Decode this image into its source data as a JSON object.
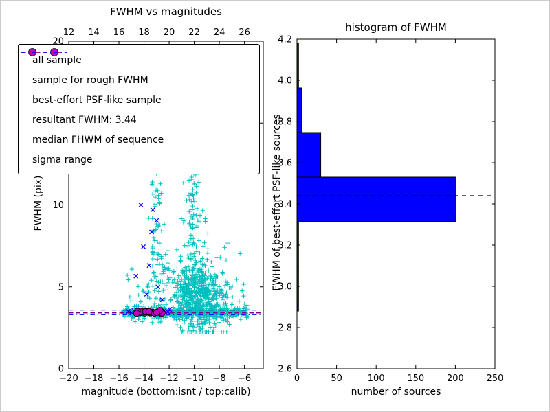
{
  "figure": {
    "background": "#ffffff"
  },
  "chart_data": [
    {
      "type": "scatter",
      "title": "FWHM vs magnitudes",
      "xlabel": "magnitude (bottom:isnt / top:calib)",
      "ylabel": "FWHM (pix)",
      "xlim": [
        -20,
        -4.5
      ],
      "ylim": [
        0,
        20
      ],
      "grid": false,
      "xticks": {
        "values": [
          -20,
          -18,
          -16,
          -14,
          -12,
          -10,
          -8,
          -6
        ],
        "labels": [
          "−20",
          "−18",
          "−16",
          "−14",
          "−12",
          "−10",
          "−8",
          "−6"
        ]
      },
      "top_xticks": {
        "values": [
          12,
          14,
          16,
          18,
          20,
          22,
          24,
          26
        ],
        "labels": [
          "12",
          "14",
          "16",
          "18",
          "20",
          "22",
          "24",
          "26"
        ],
        "offset": 32
      },
      "yticks": {
        "values": [
          0,
          5,
          10,
          15,
          20
        ],
        "labels": [
          "0",
          "5",
          "10",
          "15",
          "20"
        ]
      },
      "colors": {
        "all_sample": "#00bfbf",
        "rough_sample": "#0000ff",
        "psf_sample": "#bf00bf",
        "resultant": "#0000ff",
        "median": "#ff0000",
        "sigma": "#0000ff"
      },
      "clusters": [
        {
          "name": "band-main",
          "marker": "plus",
          "color": "#00bfbf",
          "n": 470,
          "x": {
            "type": "uniform",
            "a": -15.7,
            "b": -8.3
          },
          "y": {
            "type": "gauss",
            "mean": 3.42,
            "sd": 0.13
          }
        },
        {
          "name": "band-right",
          "marker": "plus",
          "color": "#00bfbf",
          "n": 130,
          "x": {
            "type": "uniform",
            "a": -8.3,
            "b": -5.7
          },
          "y": {
            "type": "gauss",
            "mean": 3.45,
            "sd": 0.18
          }
        },
        {
          "name": "main-cloud",
          "marker": "plus",
          "color": "#00bfbf",
          "n": 620,
          "x": {
            "type": "gauss",
            "mean": -9.7,
            "sd": 1.05
          },
          "y": {
            "type": "gauss",
            "mean": 4.4,
            "sd": 1.15
          },
          "clamp_y": [
            2.25,
            13
          ]
        },
        {
          "name": "upper-plume",
          "marker": "plus",
          "color": "#00bfbf",
          "n": 90,
          "x": {
            "type": "gauss",
            "mean": -9.95,
            "sd": 0.4
          },
          "y": {
            "type": "uniform",
            "a": 6,
            "b": 13.3
          }
        },
        {
          "name": "left-streak",
          "marker": "plus",
          "color": "#00bfbf",
          "n": 70,
          "x": {
            "type": "gauss",
            "mean": -13.05,
            "sd": 0.33
          },
          "y": {
            "type": "uniform",
            "a": 3.6,
            "b": 12.9
          }
        },
        {
          "name": "sparse",
          "marker": "plus",
          "color": "#00bfbf",
          "n": 160,
          "x": {
            "type": "uniform",
            "a": -15.6,
            "b": -6.0
          },
          "y": {
            "type": "halfgauss",
            "base": 2.8,
            "sd": 2.0
          }
        }
      ],
      "rough_points": [
        [
          -14.25,
          10.0
        ],
        [
          -13.3,
          9.7
        ],
        [
          -13.0,
          9.05
        ],
        [
          -13.4,
          8.35
        ],
        [
          -14.05,
          7.45
        ],
        [
          -13.6,
          6.3
        ],
        [
          -14.65,
          5.65
        ],
        [
          -12.9,
          5.0
        ],
        [
          -13.8,
          4.55
        ],
        [
          -12.55,
          4.2
        ],
        [
          -15.25,
          3.5
        ],
        [
          -15.0,
          3.42
        ],
        [
          -14.8,
          3.55
        ],
        [
          -14.55,
          3.38
        ],
        [
          -14.3,
          3.6
        ],
        [
          -14.1,
          3.45
        ],
        [
          -13.9,
          3.52
        ],
        [
          -13.65,
          3.4
        ],
        [
          -13.4,
          3.58
        ],
        [
          -13.15,
          3.44
        ],
        [
          -12.9,
          3.5
        ],
        [
          -12.65,
          3.42
        ],
        [
          -12.4,
          3.55
        ],
        [
          -12.1,
          3.47
        ],
        [
          -11.95,
          3.62
        ]
      ],
      "psf_cluster": {
        "n": 36,
        "x": {
          "type": "uniform",
          "a": -14.6,
          "b": -12.35
        },
        "y": {
          "type": "gauss",
          "mean": 3.46,
          "sd": 0.05
        }
      },
      "lines": [
        {
          "name": "sigma-upper",
          "y": 3.58,
          "color": "#0000ff",
          "style": "dashdot"
        },
        {
          "name": "sigma-lower",
          "y": 3.3,
          "color": "#0000ff",
          "style": "dashdot"
        },
        {
          "name": "median-fwhm",
          "y": 3.4,
          "color": "#ff0000",
          "style": "dashed"
        },
        {
          "name": "resultant-fwhm",
          "y": 3.44,
          "color": "#0000ff",
          "style": "dashed"
        }
      ],
      "legend": {
        "entries": [
          {
            "label": "all sample",
            "type": "marker",
            "marker": "plus",
            "color": "#00bfbf"
          },
          {
            "label": "sample for rough FWHM",
            "type": "marker",
            "marker": "x",
            "color": "#0000ff"
          },
          {
            "label": "best-effort PSF-like sample",
            "type": "marker",
            "marker": "circle",
            "color": "#bf00bf"
          },
          {
            "label": "resultant FWHM: 3.44",
            "type": "line",
            "style": "dashed",
            "color": "#0000ff"
          },
          {
            "label": "median FHWM of sequence",
            "type": "line",
            "style": "dashed",
            "color": "#ff0000"
          },
          {
            "label": "sigma range",
            "type": "line",
            "style": "dashdot",
            "color": "#0000ff"
          }
        ]
      }
    },
    {
      "type": "bar",
      "orientation": "horizontal",
      "title": "histogram of FWHM",
      "xlabel": "number of sources",
      "ylabel": "FWHM of best-effort PSF-like sources",
      "xlim": [
        0,
        250
      ],
      "ylim": [
        2.6,
        4.2
      ],
      "grid": false,
      "xticks": {
        "values": [
          0,
          50,
          100,
          150,
          200,
          250
        ],
        "labels": [
          "0",
          "50",
          "100",
          "150",
          "200",
          "250"
        ]
      },
      "yticks": {
        "values": [
          2.6,
          2.8,
          3.0,
          3.2,
          3.4,
          3.6,
          3.8,
          4.0,
          4.2
        ],
        "labels": [
          "2.6",
          "2.8",
          "3.0",
          "3.2",
          "3.4",
          "3.6",
          "3.8",
          "4.0",
          "4.2"
        ]
      },
      "bar_color": "#0000ff",
      "bar_edge_color": "#000000",
      "bins": {
        "edges": [
          2.88,
          3.0967,
          3.3133,
          3.53,
          3.7467,
          3.9633,
          4.18
        ],
        "counts": [
          2,
          2,
          200,
          30,
          6,
          2
        ]
      },
      "hline": {
        "y": 3.44,
        "color": "#000000",
        "style": "dashed"
      }
    }
  ]
}
